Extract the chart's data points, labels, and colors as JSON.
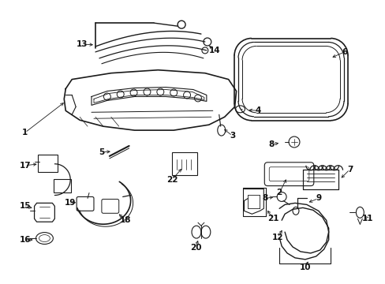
{
  "bg_color": "#ffffff",
  "line_color": "#1a1a1a",
  "label_color": "#111111",
  "label_fontsize": 7.5
}
